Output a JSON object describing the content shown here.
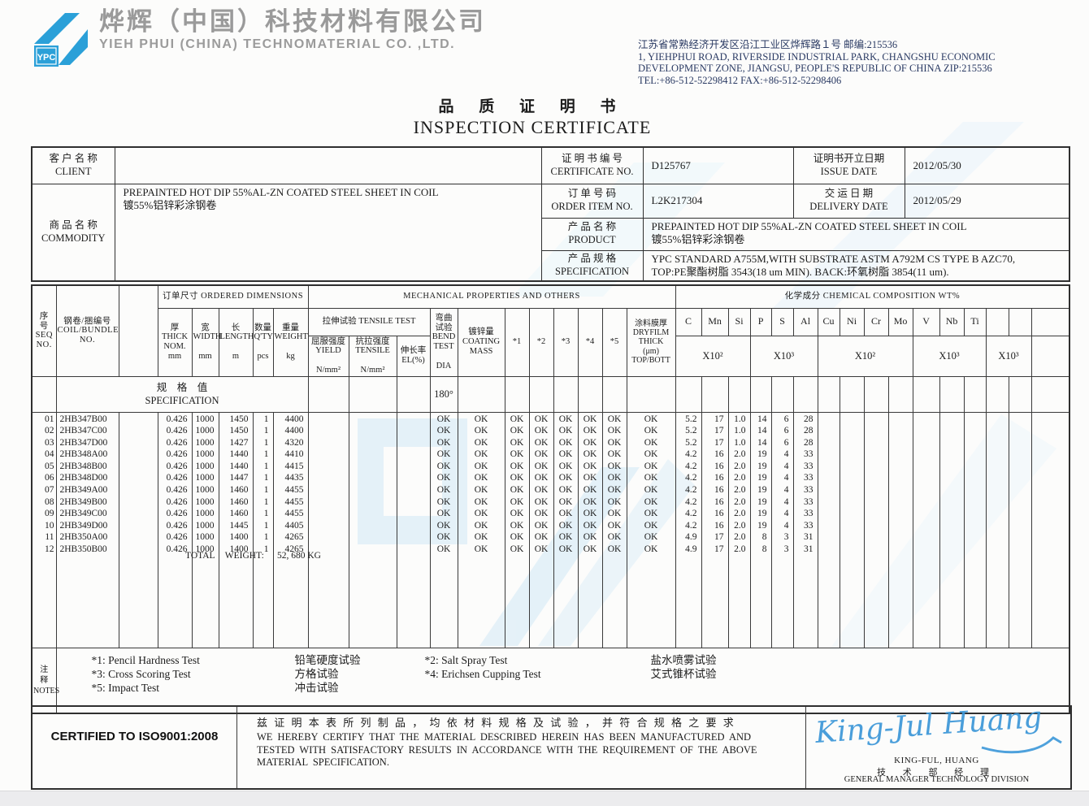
{
  "colors": {
    "accent_blue": "#2ba0d8",
    "signature_blue": "#3b97d8",
    "watermark_blue": "#d8ecf7",
    "address_navy": "#2a3a63",
    "company_gray": "#9a9a9a"
  },
  "header": {
    "logo_text": "YPC",
    "company_cn": "烨辉（中国）科技材料有限公司",
    "company_en": "YIEH PHUI (CHINA) TECHNOMATERIAL CO. ,LTD.",
    "address_lines": [
      "江苏省常熟经济开发区沿江工业区烨辉路１号 邮编:215536",
      "1, YIEHPHUI ROAD, RIVERSIDE INDUSTRIAL PARK, CHANGSHU ECONOMIC",
      "DEVELOPMENT ZONE, JIANGSU, PEOPLE'S REPUBLIC OF CHINA ZIP:215536",
      "TEL:+86-512-52298412  FAX:+86-512-52298406"
    ],
    "title_cn": "品 质 证 明 书",
    "title_en": "INSPECTION CERTIFICATE"
  },
  "info": {
    "client_label": "客 户 名 称\nCLIENT",
    "client_value": "",
    "commodity_label": "商 品 名 称\nCOMMODITY",
    "commodity_value": "PREPAINTED HOT DIP 55%AL-ZN COATED STEEL SHEET IN COIL\n镀55%铝锌彩涂钢卷",
    "certificate_label": "证 明 书 编 号\nCERTIFICATE NO.",
    "certificate_no": "D125767",
    "issue_label": "证明书开立日期\nISSUE DATE",
    "issue_date": "2012/05/30",
    "order_label": "订 单 号 码\nORDER ITEM NO.",
    "order_no": "L2K217304",
    "delivery_label": "交 运 日 期\nDELIVERY DATE",
    "delivery_date": "2012/05/29",
    "product_label": "产 品 名 称\nPRODUCT",
    "product_value": "PREPAINTED HOT DIP 55%AL-ZN COATED STEEL SHEET IN COIL\n镀55%铝锌彩涂钢卷",
    "spec_label": "产 品 规 格\nSPECIFICATION",
    "spec_value": "YPC STANDARD A755M,WITH SUBSTRATE ASTM A792M CS TYPE B AZC70,\nTOP:PE聚酯树脂 3543(18 um MIN).   BACK:环氧树脂 3854(11 um)."
  },
  "table": {
    "banners": {
      "ordered": "订单尺寸 ORDERED DIMENSIONS",
      "mechanical": "MECHANICAL PROPERTIES AND OTHERS",
      "chemical": "化学成分 CHEMICAL COMPOSITION WT%",
      "tensile": "拉伸试验 TENSILE TEST"
    },
    "headers": {
      "seq": "序\n号\nSEQ\nNO.",
      "coil": "钢卷/捆编号\nCOIL/BUNDLE\nNO.",
      "thick": "厚\nTHICK\nNOM.\nmm",
      "width": "宽\nWIDTH\n\nmm",
      "length": "长\nLENGTH\n\nm",
      "qty": "数量\nQ'TY\n\npcs",
      "weight": "重量\nWEIGHT\n\nkg",
      "yield": "屈服强度\nYIELD\n\nN/mm²",
      "tensile": "抗拉强度\nTENSILE\n\nN/mm²",
      "el": "伸长率\nEL(%)",
      "bend": "弯曲\n试验\nBEND\nTEST\n\nDIA",
      "coating": "镀锌量\nCOATING\nMASS",
      "s1": "*1",
      "s2": "*2",
      "s3": "*3",
      "s4": "*4",
      "s5": "*5",
      "dryfilm": "涂料膜厚\nDRYFILM\nTHICK\n(μm)\nTOP/BOTT"
    },
    "chem_elements": [
      "C",
      "Mn",
      "Si",
      "P",
      "S",
      "Al",
      "Cu",
      "Ni",
      "Cr",
      "Mo",
      "V",
      "Nb",
      "Ti",
      "",
      "",
      ""
    ],
    "chem_groups": [
      {
        "label": "X10²",
        "span": 3
      },
      {
        "label": "X10³",
        "span": 3
      },
      {
        "label": "X10²",
        "span": 4
      },
      {
        "label": "X10³",
        "span": 3
      },
      {
        "label": "X10³",
        "span": 2
      },
      {
        "label": "",
        "span": 1
      }
    ],
    "spec_row": {
      "label": "规　格　值\nSPECIFICATION",
      "bend": "180°"
    },
    "rows": [
      {
        "seq": "01",
        "coil": "2HB347B00",
        "thick": "0.426",
        "width": "1000",
        "length": "1450",
        "qty": "1",
        "weight": "4400",
        "bend": "OK",
        "coating": "OK",
        "s1": "OK",
        "s2": "OK",
        "s3": "OK",
        "s4": "OK",
        "s5": "OK",
        "dryfilm": "OK",
        "c": "5.2",
        "mn": "17",
        "si": "1.0",
        "p": "14",
        "s": "6",
        "al": "28"
      },
      {
        "seq": "02",
        "coil": "2HB347C00",
        "thick": "0.426",
        "width": "1000",
        "length": "1450",
        "qty": "1",
        "weight": "4400",
        "bend": "OK",
        "coating": "OK",
        "s1": "OK",
        "s2": "OK",
        "s3": "OK",
        "s4": "OK",
        "s5": "OK",
        "dryfilm": "OK",
        "c": "5.2",
        "mn": "17",
        "si": "1.0",
        "p": "14",
        "s": "6",
        "al": "28"
      },
      {
        "seq": "03",
        "coil": "2HB347D00",
        "thick": "0.426",
        "width": "1000",
        "length": "1427",
        "qty": "1",
        "weight": "4320",
        "bend": "OK",
        "coating": "OK",
        "s1": "OK",
        "s2": "OK",
        "s3": "OK",
        "s4": "OK",
        "s5": "OK",
        "dryfilm": "OK",
        "c": "5.2",
        "mn": "17",
        "si": "1.0",
        "p": "14",
        "s": "6",
        "al": "28"
      },
      {
        "seq": "04",
        "coil": "2HB348A00",
        "thick": "0.426",
        "width": "1000",
        "length": "1440",
        "qty": "1",
        "weight": "4410",
        "bend": "OK",
        "coating": "OK",
        "s1": "OK",
        "s2": "OK",
        "s3": "OK",
        "s4": "OK",
        "s5": "OK",
        "dryfilm": "OK",
        "c": "4.2",
        "mn": "16",
        "si": "2.0",
        "p": "19",
        "s": "4",
        "al": "33"
      },
      {
        "seq": "05",
        "coil": "2HB348B00",
        "thick": "0.426",
        "width": "1000",
        "length": "1440",
        "qty": "1",
        "weight": "4415",
        "bend": "OK",
        "coating": "OK",
        "s1": "OK",
        "s2": "OK",
        "s3": "OK",
        "s4": "OK",
        "s5": "OK",
        "dryfilm": "OK",
        "c": "4.2",
        "mn": "16",
        "si": "2.0",
        "p": "19",
        "s": "4",
        "al": "33"
      },
      {
        "seq": "06",
        "coil": "2HB348D00",
        "thick": "0.426",
        "width": "1000",
        "length": "1447",
        "qty": "1",
        "weight": "4435",
        "bend": "OK",
        "coating": "OK",
        "s1": "OK",
        "s2": "OK",
        "s3": "OK",
        "s4": "OK",
        "s5": "OK",
        "dryfilm": "OK",
        "c": "4.2",
        "mn": "16",
        "si": "2.0",
        "p": "19",
        "s": "4",
        "al": "33"
      },
      {
        "seq": "07",
        "coil": "2HB349A00",
        "thick": "0.426",
        "width": "1000",
        "length": "1460",
        "qty": "1",
        "weight": "4455",
        "bend": "OK",
        "coating": "OK",
        "s1": "OK",
        "s2": "OK",
        "s3": "OK",
        "s4": "OK",
        "s5": "OK",
        "dryfilm": "OK",
        "c": "4.2",
        "mn": "16",
        "si": "2.0",
        "p": "19",
        "s": "4",
        "al": "33"
      },
      {
        "seq": "08",
        "coil": "2HB349B00",
        "thick": "0.426",
        "width": "1000",
        "length": "1460",
        "qty": "1",
        "weight": "4455",
        "bend": "OK",
        "coating": "OK",
        "s1": "OK",
        "s2": "OK",
        "s3": "OK",
        "s4": "OK",
        "s5": "OK",
        "dryfilm": "OK",
        "c": "4.2",
        "mn": "16",
        "si": "2.0",
        "p": "19",
        "s": "4",
        "al": "33"
      },
      {
        "seq": "09",
        "coil": "2HB349C00",
        "thick": "0.426",
        "width": "1000",
        "length": "1460",
        "qty": "1",
        "weight": "4455",
        "bend": "OK",
        "coating": "OK",
        "s1": "OK",
        "s2": "OK",
        "s3": "OK",
        "s4": "OK",
        "s5": "OK",
        "dryfilm": "OK",
        "c": "4.2",
        "mn": "16",
        "si": "2.0",
        "p": "19",
        "s": "4",
        "al": "33"
      },
      {
        "seq": "10",
        "coil": "2HB349D00",
        "thick": "0.426",
        "width": "1000",
        "length": "1445",
        "qty": "1",
        "weight": "4405",
        "bend": "OK",
        "coating": "OK",
        "s1": "OK",
        "s2": "OK",
        "s3": "OK",
        "s4": "OK",
        "s5": "OK",
        "dryfilm": "OK",
        "c": "4.2",
        "mn": "16",
        "si": "2.0",
        "p": "19",
        "s": "4",
        "al": "33"
      },
      {
        "seq": "11",
        "coil": "2HB350A00",
        "thick": "0.426",
        "width": "1000",
        "length": "1400",
        "qty": "1",
        "weight": "4265",
        "bend": "OK",
        "coating": "OK",
        "s1": "OK",
        "s2": "OK",
        "s3": "OK",
        "s4": "OK",
        "s5": "OK",
        "dryfilm": "OK",
        "c": "4.9",
        "mn": "17",
        "si": "2.0",
        "p": "8",
        "s": "3",
        "al": "31"
      },
      {
        "seq": "12",
        "coil": "2HB350B00",
        "thick": "0.426",
        "width": "1000",
        "length": "1400",
        "qty": "1",
        "weight": "4265",
        "bend": "OK",
        "coating": "OK",
        "s1": "OK",
        "s2": "OK",
        "s3": "OK",
        "s4": "OK",
        "s5": "OK",
        "dryfilm": "OK",
        "c": "4.9",
        "mn": "17",
        "si": "2.0",
        "p": "8",
        "s": "3",
        "al": "31"
      }
    ],
    "total_weight_label": "TOTAL WEIGHT:",
    "total_weight_value": "52, 680 KG"
  },
  "notes": {
    "label": "注\n释\nNOTES",
    "items": [
      {
        "en": "*1: Pencil Hardness Test",
        "cn": "铅笔硬度试验"
      },
      {
        "en": "*2: Salt Spray Test",
        "cn": "盐水喷雾试验"
      },
      {
        "en": "*3: Cross Scoring Test",
        "cn": "方格试验"
      },
      {
        "en": "*4: Erichsen Cupping Test",
        "cn": "艾式锥杯试验"
      },
      {
        "en": "*5: Impact Test",
        "cn": "冲击试验"
      }
    ]
  },
  "footer": {
    "iso": "CERTIFIED TO ISO9001:2008",
    "declaration_cn": "兹 证 明 本 表 所 列 制 品 ， 均 依 材 料 规 格 及 试 验 ， 并 符 合 规 格 之 要 求",
    "declaration_en": "WE HEREBY CERTIFY THAT THE MATERIAL DESCRIBED HEREIN HAS BEEN MANUFACTURED AND\nTESTED WITH SATISFACTORY RESULTS IN ACCORDANCE WITH THE REQUIREMENT OF THE ABOVE\nMATERIAL SPECIFICATION.",
    "signature_script": "King-Jul Huang",
    "signer_name": "KING-FUL, HUANG",
    "signer_title_cn": "技 术 部 经 理",
    "signer_title_en": "GENERAL MANAGER TECHNOLOGY DIVISION"
  }
}
